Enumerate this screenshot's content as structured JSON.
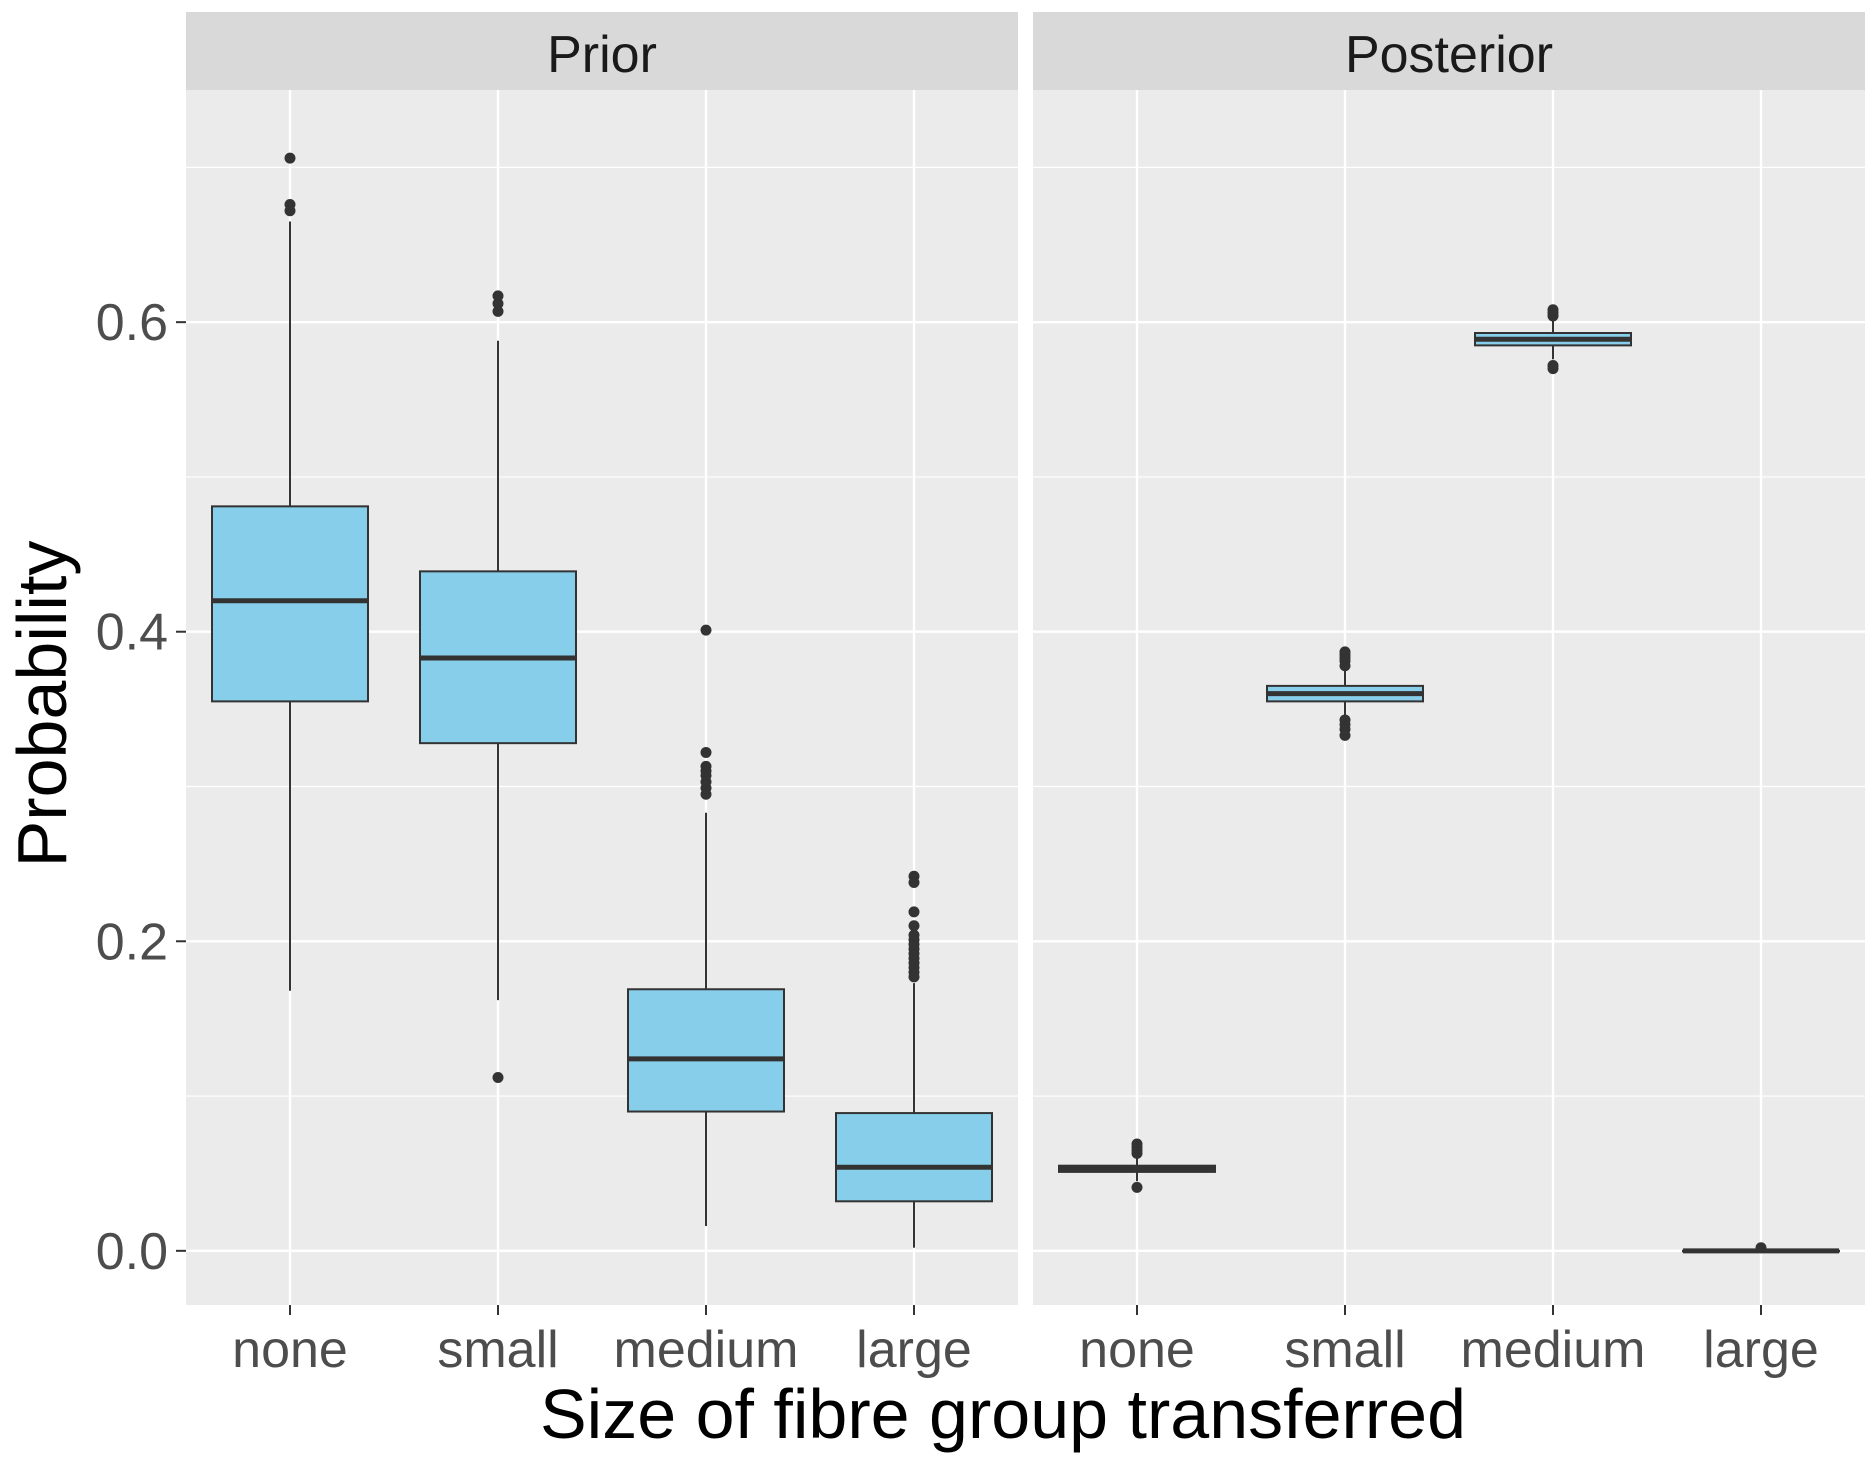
{
  "chart_data": {
    "type": "boxplot",
    "xlabel": "Size of fibre group transferred",
    "ylabel": "Probability",
    "ylim": [
      -0.035,
      0.75
    ],
    "yticks": [
      0.0,
      0.2,
      0.4,
      0.6
    ],
    "ytick_labels": [
      "0.0",
      "0.2",
      "0.4",
      "0.6"
    ],
    "categories": [
      "none",
      "small",
      "medium",
      "large"
    ],
    "box_fill": "#87CEEB",
    "box_stroke": "#333333",
    "panel_background": "#EBEBEB",
    "strip_background": "#D9D9D9",
    "grid_color": "#FFFFFF",
    "legend": "none",
    "panels": [
      {
        "title": "Prior",
        "boxes": [
          {
            "category": "none",
            "whisker_low": 0.168,
            "q1": 0.355,
            "median": 0.42,
            "q3": 0.481,
            "whisker_high": 0.665,
            "outliers": [
              0.672,
              0.676,
              0.706
            ]
          },
          {
            "category": "small",
            "whisker_low": 0.162,
            "q1": 0.328,
            "median": 0.383,
            "q3": 0.439,
            "whisker_high": 0.588,
            "outliers": [
              0.112,
              0.607,
              0.612,
              0.617
            ]
          },
          {
            "category": "medium",
            "whisker_low": 0.016,
            "q1": 0.09,
            "median": 0.124,
            "q3": 0.169,
            "whisker_high": 0.283,
            "outliers": [
              0.295,
              0.299,
              0.303,
              0.307,
              0.31,
              0.313,
              0.322,
              0.401
            ]
          },
          {
            "category": "large",
            "whisker_low": 0.002,
            "q1": 0.032,
            "median": 0.054,
            "q3": 0.089,
            "whisker_high": 0.173,
            "outliers": [
              0.177,
              0.18,
              0.183,
              0.186,
              0.189,
              0.192,
              0.195,
              0.198,
              0.201,
              0.204,
              0.21,
              0.219,
              0.238,
              0.242
            ]
          }
        ]
      },
      {
        "title": "Posterior",
        "boxes": [
          {
            "category": "none",
            "whisker_low": 0.045,
            "q1": 0.051,
            "median": 0.053,
            "q3": 0.055,
            "whisker_high": 0.061,
            "outliers": [
              0.041,
              0.063,
              0.065,
              0.067,
              0.069
            ]
          },
          {
            "category": "small",
            "whisker_low": 0.345,
            "q1": 0.355,
            "median": 0.36,
            "q3": 0.365,
            "whisker_high": 0.375,
            "outliers": [
              0.333,
              0.337,
              0.34,
              0.343,
              0.378,
              0.381,
              0.383,
              0.385,
              0.387
            ]
          },
          {
            "category": "medium",
            "whisker_low": 0.576,
            "q1": 0.585,
            "median": 0.589,
            "q3": 0.593,
            "whisker_high": 0.602,
            "outliers": [
              0.57,
              0.572,
              0.604,
              0.606,
              0.608
            ]
          },
          {
            "category": "large",
            "whisker_low": 0.0,
            "q1": 0.0,
            "median": 0.0,
            "q3": 0.0,
            "whisker_high": 0.001,
            "outliers": [
              0.002
            ]
          }
        ]
      }
    ]
  }
}
